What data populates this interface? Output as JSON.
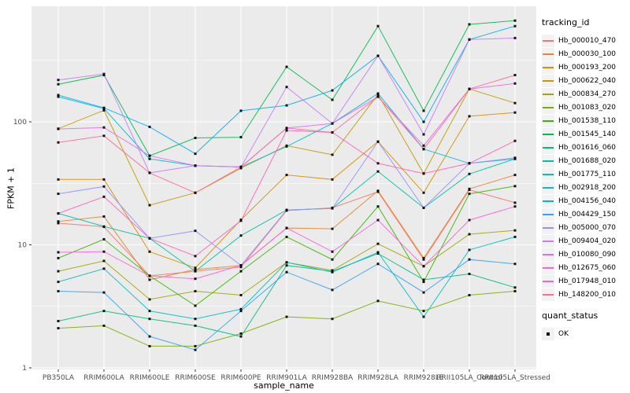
{
  "figure": {
    "panel_bg": "#EBEBEB",
    "grid_color": "#FFFFFF",
    "tick_color": "#333333",
    "tick_label_color": "#4D4D4D",
    "point_color": "#000000"
  },
  "legend": {
    "tracking_title": "tracking_id",
    "quant_title": "quant_status",
    "quant_label": "OK"
  },
  "chart_data": {
    "type": "line",
    "title": "",
    "xlabel": "sample_name",
    "ylabel": "FPKM + 1",
    "y_scale": "log10",
    "ylim": [
      1,
      870
    ],
    "y_major_ticks": [
      1,
      10,
      100
    ],
    "y_minor_ticks": [
      3.162,
      31.62,
      316.2
    ],
    "grid": true,
    "legend_position": "right",
    "point_shape": "filled-black-square",
    "categories": [
      "PB350LA",
      "RRIM600LA",
      "RRIM600LE",
      "RRIM600SE",
      "RRIM600PE",
      "RRIM901LA",
      "RRIM928BA",
      "RRIM928LA",
      "RRIM928LE",
      "RRII105LA_Control",
      "RRII105LA_Stressed"
    ],
    "series": [
      {
        "name": "Hb_000010_470",
        "color": "#F8766D",
        "values": [
          15,
          14,
          5.6,
          6.1,
          6.6,
          19,
          20,
          27,
          7.6,
          28,
          22
        ]
      },
      {
        "name": "Hb_000030_100",
        "color": "#EA8331",
        "values": [
          15.5,
          17,
          5.2,
          6.3,
          6.8,
          13.7,
          13.5,
          27.5,
          7.8,
          28.5,
          37
        ]
      },
      {
        "name": "Hb_000193_200",
        "color": "#D89000",
        "values": [
          34,
          34,
          8.8,
          6.5,
          16,
          37,
          34,
          69,
          26.5,
          111,
          119
        ]
      },
      {
        "name": "Hb_000622_040",
        "color": "#C09B00",
        "values": [
          88,
          124,
          21,
          26.5,
          42,
          64,
          54,
          167,
          38,
          185,
          142
        ]
      },
      {
        "name": "Hb_000834_270",
        "color": "#A3A500",
        "values": [
          6.1,
          7.4,
          3.6,
          4.2,
          3.9,
          7.2,
          6.2,
          10.2,
          6.7,
          12.2,
          13.1
        ]
      },
      {
        "name": "Hb_001083_020",
        "color": "#7CAE00",
        "values": [
          2.1,
          2.2,
          1.5,
          1.5,
          1.9,
          2.6,
          2.5,
          3.5,
          2.9,
          3.9,
          4.2
        ]
      },
      {
        "name": "Hb_001538_110",
        "color": "#39B600",
        "values": [
          7.8,
          11.1,
          5.6,
          3.2,
          6.1,
          11.6,
          7.6,
          20.5,
          5.0,
          26,
          30
        ]
      },
      {
        "name": "Hb_001545_140",
        "color": "#00BB4E",
        "values": [
          202,
          240,
          53,
          74,
          75,
          280,
          151,
          600,
          123,
          620,
          665
        ]
      },
      {
        "name": "Hb_001616_060",
        "color": "#00BF7D",
        "values": [
          2.4,
          2.9,
          2.5,
          2.2,
          1.8,
          6.8,
          6.1,
          8.5,
          5.2,
          5.8,
          4.5
        ]
      },
      {
        "name": "Hb_001688_020",
        "color": "#00C1A3",
        "values": [
          18,
          14.1,
          11.3,
          6.1,
          11.9,
          19.2,
          19.8,
          39.5,
          20,
          37.7,
          50
        ]
      },
      {
        "name": "Hb_001775_110",
        "color": "#00BFC4",
        "values": [
          5.0,
          6.4,
          2.9,
          2.5,
          3.0,
          7.2,
          6.0,
          8.7,
          2.6,
          9.1,
          11.6
        ]
      },
      {
        "name": "Hb_002918_200",
        "color": "#00BAE0",
        "values": [
          160,
          128,
          50,
          44,
          43,
          63,
          97,
          170,
          60,
          46,
          50
        ]
      },
      {
        "name": "Hb_004156_040",
        "color": "#00B0F6",
        "values": [
          165,
          130,
          91,
          55,
          123,
          136,
          180,
          344,
          100,
          467,
          600
        ]
      },
      {
        "name": "Hb_004429_150",
        "color": "#35A2FF",
        "values": [
          4.2,
          4.1,
          1.8,
          1.4,
          2.9,
          6.0,
          4.3,
          7.0,
          4.1,
          7.6,
          7.0
        ]
      },
      {
        "name": "Hb_005000_070",
        "color": "#9590FF",
        "values": [
          26,
          29.8,
          11.3,
          13,
          6.8,
          19.2,
          19.8,
          69,
          20,
          46,
          51
        ]
      },
      {
        "name": "Hb_009404_020",
        "color": "#C77CFF",
        "values": [
          219,
          245,
          38.5,
          44,
          43,
          192,
          97,
          344,
          79,
          467,
          480
        ]
      },
      {
        "name": "Hb_010080_090",
        "color": "#E76BF3",
        "values": [
          87.5,
          90,
          53,
          44,
          43,
          89,
          97,
          160,
          64,
          185,
          205
        ]
      },
      {
        "name": "Hb_012675_060",
        "color": "#FA62DB",
        "values": [
          8.7,
          8.8,
          5.6,
          5.3,
          6.8,
          13.7,
          8.8,
          15.9,
          6.7,
          15.9,
          20.5
        ]
      },
      {
        "name": "Hb_017948_010",
        "color": "#FF62BC",
        "values": [
          18,
          24.6,
          11.3,
          8.1,
          15.7,
          85,
          82,
          46,
          38,
          46,
          70
        ]
      },
      {
        "name": "Hb_148200_010",
        "color": "#FF6A98",
        "values": [
          68,
          77,
          38.5,
          26.5,
          43,
          89,
          82,
          160,
          60,
          185,
          240
        ]
      }
    ]
  }
}
